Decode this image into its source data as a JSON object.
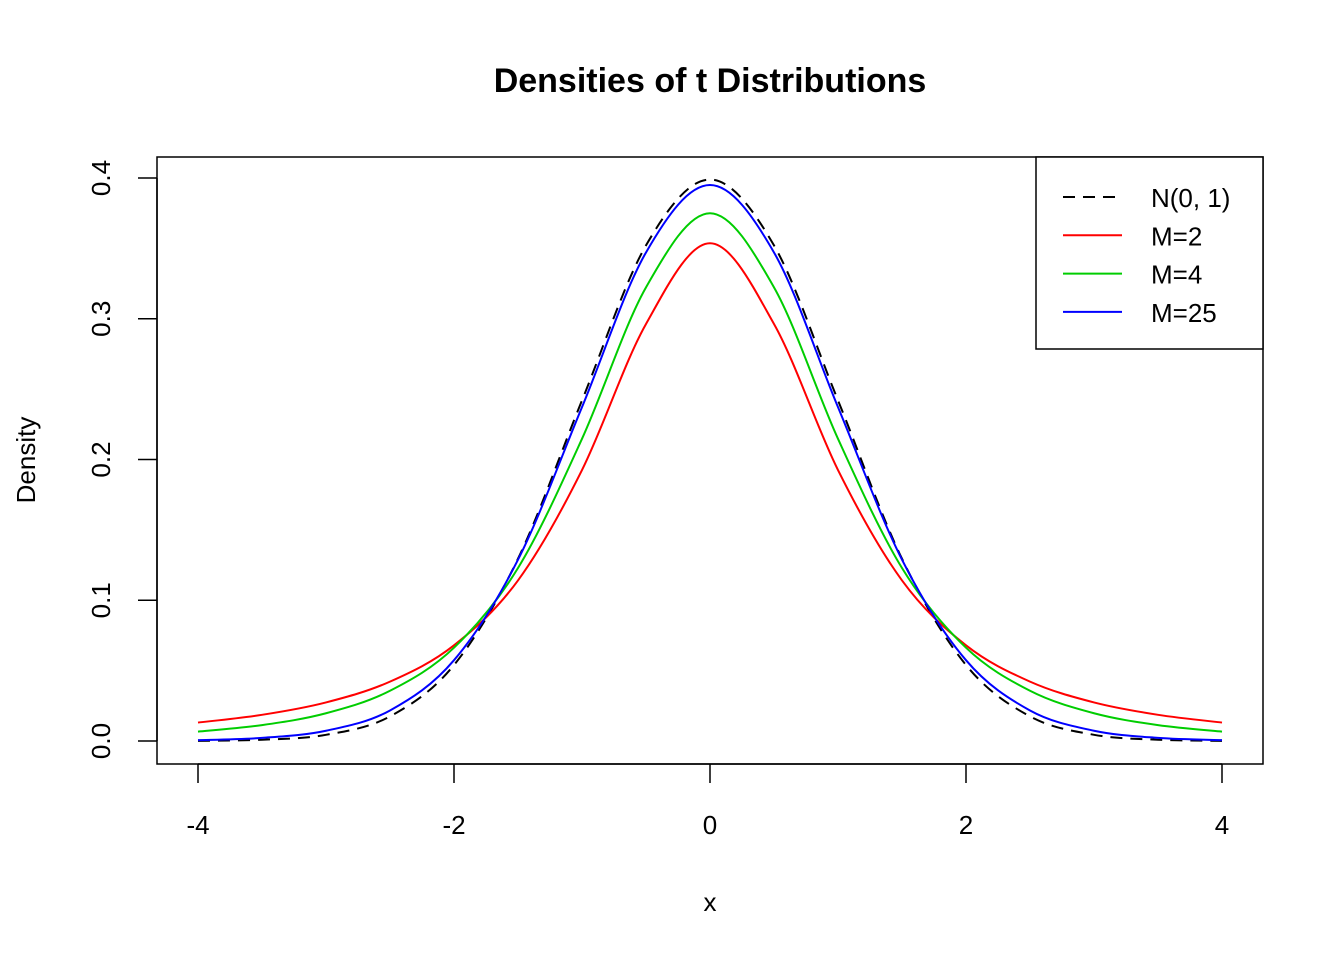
{
  "chart_data": {
    "type": "line",
    "title": "Densities of t Distributions",
    "xlabel": "x",
    "ylabel": "Density",
    "xlim": [
      -4,
      4
    ],
    "ylim": [
      0,
      0.4
    ],
    "xticks": [
      "-4",
      "-2",
      "0",
      "2",
      "4"
    ],
    "yticks": [
      "0.0",
      "0.1",
      "0.2",
      "0.3",
      "0.4"
    ],
    "grid": false,
    "legend_position": "top-right",
    "x": [
      -4,
      -3.5,
      -3,
      -2.5,
      -2,
      -1.5,
      -1,
      -0.5,
      0,
      0.5,
      1,
      1.5,
      2,
      2.5,
      3,
      3.5,
      4
    ],
    "series": [
      {
        "name": "N(0, 1)",
        "color": "#000000",
        "dash": true,
        "values": [
          0.0001,
          0.0009,
          0.0044,
          0.0175,
          0.054,
          0.1295,
          0.242,
          0.3521,
          0.3989,
          0.3521,
          0.242,
          0.1295,
          0.054,
          0.0175,
          0.0044,
          0.0009,
          0.0001
        ]
      },
      {
        "name": "M=2",
        "color": "#FF0000",
        "dash": false,
        "values": [
          0.0131,
          0.0186,
          0.0274,
          0.0422,
          0.068,
          0.1141,
          0.1925,
          0.2963,
          0.3536,
          0.2963,
          0.1925,
          0.1141,
          0.068,
          0.0422,
          0.0274,
          0.0186,
          0.0131
        ]
      },
      {
        "name": "M=4",
        "color": "#00CD00",
        "dash": false,
        "values": [
          0.0067,
          0.0113,
          0.0197,
          0.0357,
          0.0663,
          0.1229,
          0.2147,
          0.3223,
          0.375,
          0.3223,
          0.2147,
          0.1229,
          0.0663,
          0.0357,
          0.0197,
          0.0113,
          0.0067
        ]
      },
      {
        "name": "M=25",
        "color": "#0000FF",
        "dash": false,
        "values": [
          0.0006,
          0.0022,
          0.0073,
          0.0217,
          0.0574,
          0.1288,
          0.2372,
          0.3471,
          0.395,
          0.3471,
          0.2372,
          0.1288,
          0.0574,
          0.0217,
          0.0073,
          0.0022,
          0.0006
        ]
      }
    ]
  }
}
